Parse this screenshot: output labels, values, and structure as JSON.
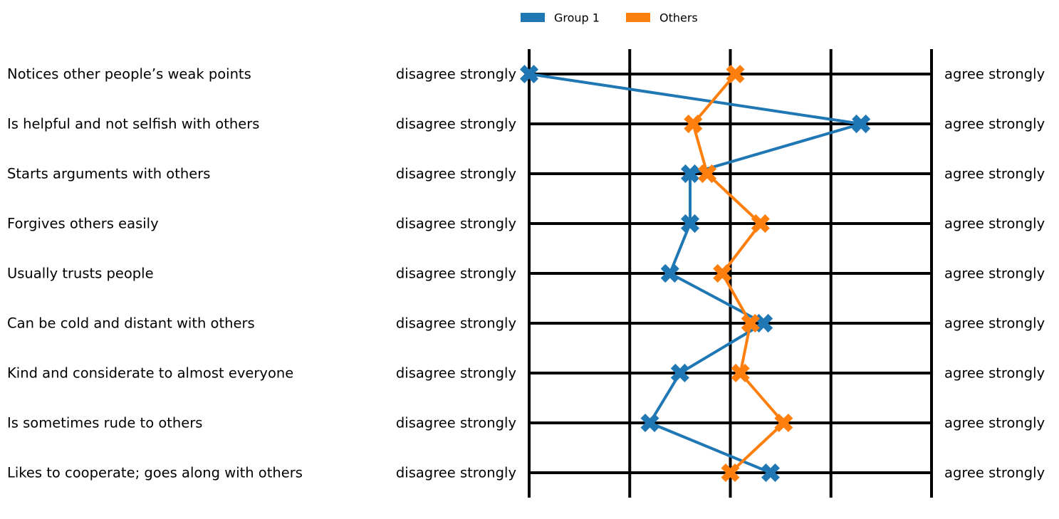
{
  "chart_data": {
    "type": "scatter",
    "subtype": "semantic-differential profile",
    "xlim": [
      1,
      5
    ],
    "tick_values": [
      1,
      2,
      3,
      4,
      5
    ],
    "scale_low_label": "disagree strongly",
    "scale_high_label": "agree strongly",
    "items": [
      "Notices other people’s weak points",
      "Is helpful and not selfish with others",
      "Starts arguments with others",
      "Forgives others easily",
      "Usually trusts people",
      "Can be cold and distant with others",
      "Kind and considerate to almost everyone",
      "Is sometimes rude to others",
      "Likes to cooperate; goes along with others"
    ],
    "series": [
      {
        "name": "Group 1",
        "color": "#1f77b4",
        "values": [
          1.0,
          4.3,
          2.6,
          2.6,
          2.4,
          3.33,
          2.5,
          2.2,
          3.4
        ]
      },
      {
        "name": "Others",
        "color": "#ff7f0e",
        "values": [
          3.05,
          2.63,
          2.77,
          3.3,
          2.92,
          3.2,
          3.1,
          3.53,
          3.0
        ]
      }
    ],
    "legend": {
      "position": "top-center"
    },
    "grid": false
  }
}
